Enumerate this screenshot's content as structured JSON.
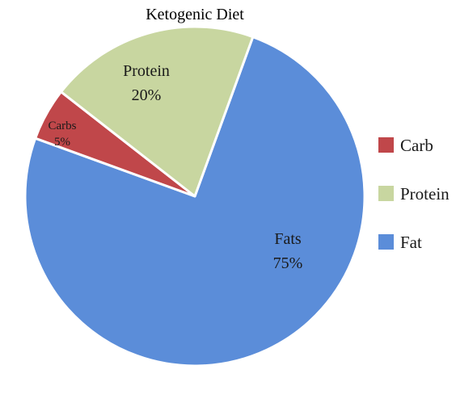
{
  "chart_data": {
    "type": "pie",
    "title": "Ketogenic Diet",
    "categories": [
      "Fats",
      "Carbs",
      "Protein"
    ],
    "values": [
      75,
      5,
      20
    ],
    "slice_labels": [
      {
        "name": "Fats",
        "value": "75%"
      },
      {
        "name": "Carbs",
        "value": "5%"
      },
      {
        "name": "Protein",
        "value": "20%"
      }
    ],
    "colors": [
      "#5b8dd9",
      "#c0474a",
      "#c8d6a0"
    ],
    "legend": {
      "placement": "right",
      "items": [
        {
          "label": "Carb",
          "color": "#c0474a"
        },
        {
          "label": "Protein",
          "color": "#c8d6a0"
        },
        {
          "label": "Fat",
          "color": "#5b8dd9"
        }
      ]
    },
    "start_angle_deg": 20,
    "direction": "clockwise"
  }
}
